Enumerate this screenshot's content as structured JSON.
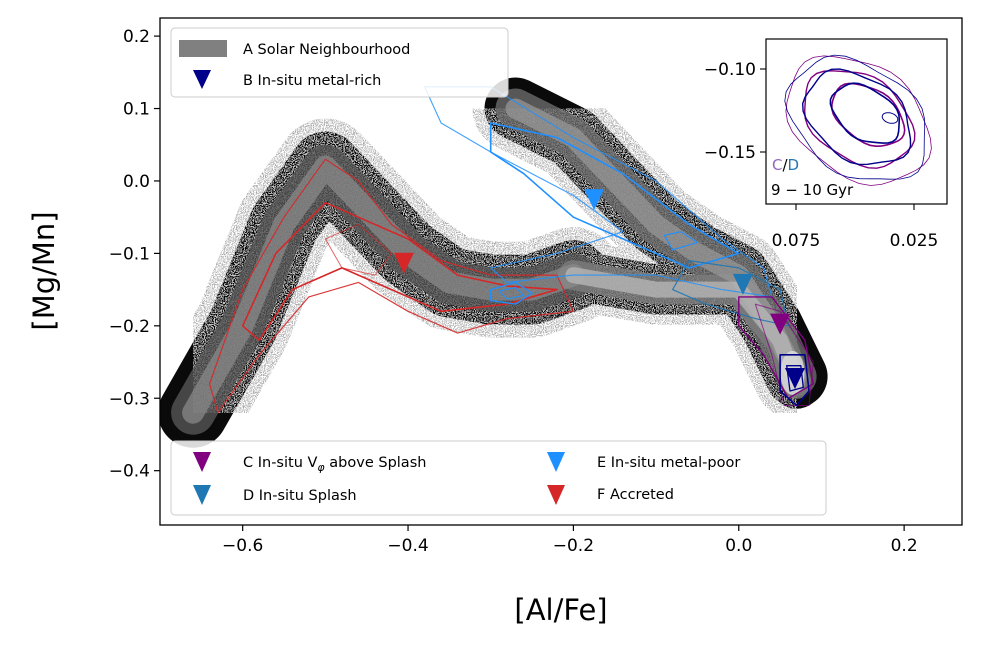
{
  "chart_data": {
    "type": "scatter",
    "xlabel": "[Al/Fe]",
    "ylabel": "[Mg/Mn]",
    "xlim": [
      -0.7,
      0.27
    ],
    "ylim": [
      -0.475,
      0.225
    ],
    "x_ticks": [
      -0.6,
      -0.4,
      -0.2,
      0.0,
      0.2
    ],
    "x_tick_labels": [
      "−0.6",
      "−0.4",
      "−0.2",
      "0.0",
      "0.2"
    ],
    "y_ticks": [
      0.2,
      0.1,
      0.0,
      -0.1,
      -0.2,
      -0.3,
      -0.4
    ],
    "y_tick_labels": [
      "0.2",
      "0.1",
      "0.0",
      "−0.1",
      "−0.2",
      "−0.3",
      "−0.4"
    ],
    "grid": false,
    "legend_upper": {
      "placement": "top-left",
      "entries": [
        {
          "label": "A Solar Neighbourhood",
          "marker": "patch",
          "color": "#808080"
        },
        {
          "label": "B In-situ metal-rich",
          "marker": "triangle-down",
          "color": "#00008b"
        }
      ]
    },
    "legend_lower": {
      "placement": "bottom-left",
      "entries": [
        {
          "label": "C In-situ V",
          "label_sub": "φ",
          "label_tail": " above Splash",
          "marker": "triangle-down",
          "color": "#800080"
        },
        {
          "label": "D In-situ Splash",
          "marker": "triangle-down",
          "color": "#1f77b4"
        },
        {
          "label": "E In-situ metal-poor",
          "marker": "triangle-down",
          "color": "#1e90ff"
        },
        {
          "label": "F Accreted",
          "marker": "triangle-down",
          "color": "#d62728"
        }
      ]
    },
    "series": [
      {
        "name": "B In-situ metal-rich",
        "color": "#00008b",
        "median": {
          "x": 0.068,
          "y": -0.272
        }
      },
      {
        "name": "C In-situ Vφ above Splash",
        "color": "#800080",
        "median": {
          "x": 0.05,
          "y": -0.197
        }
      },
      {
        "name": "D In-situ Splash",
        "color": "#1f77b4",
        "median": {
          "x": 0.005,
          "y": -0.142
        }
      },
      {
        "name": "E In-situ metal-poor",
        "color": "#1e90ff",
        "median": {
          "x": -0.175,
          "y": -0.025
        }
      },
      {
        "name": "F Accreted",
        "color": "#d62728",
        "median": {
          "x": -0.405,
          "y": -0.113
        }
      }
    ],
    "background_density": {
      "name": "A Solar Neighbourhood",
      "colormap": "greys",
      "ridge": [
        [
          -0.66,
          -0.32
        ],
        [
          -0.6,
          -0.2
        ],
        [
          -0.55,
          -0.06
        ],
        [
          -0.5,
          0.02
        ],
        [
          -0.45,
          -0.04
        ],
        [
          -0.4,
          -0.1
        ],
        [
          -0.35,
          -0.14
        ],
        [
          -0.3,
          -0.15
        ],
        [
          -0.25,
          -0.15
        ],
        [
          -0.2,
          -0.13
        ],
        [
          -0.27,
          0.1
        ],
        [
          -0.2,
          0.06
        ],
        [
          -0.15,
          0.0
        ],
        [
          -0.1,
          -0.06
        ],
        [
          -0.05,
          -0.1
        ],
        [
          0.0,
          -0.13
        ],
        [
          0.04,
          -0.2
        ],
        [
          0.07,
          -0.27
        ]
      ]
    },
    "inset": {
      "placement": "top-right",
      "x_ticks": [
        0.075,
        0.025
      ],
      "x_tick_labels": [
        "0.075",
        "0.025"
      ],
      "y_ticks": [
        -0.1,
        -0.15
      ],
      "y_tick_labels": [
        "−0.10",
        "−0.15"
      ],
      "label_c": "C",
      "label_slash": "/",
      "label_d": "D",
      "label_age": "9 − 10 Gyr",
      "colors": {
        "c": "#800080",
        "d": "#00008b",
        "c_text": "#9467bd",
        "d_text": "#1f77b4"
      }
    }
  }
}
